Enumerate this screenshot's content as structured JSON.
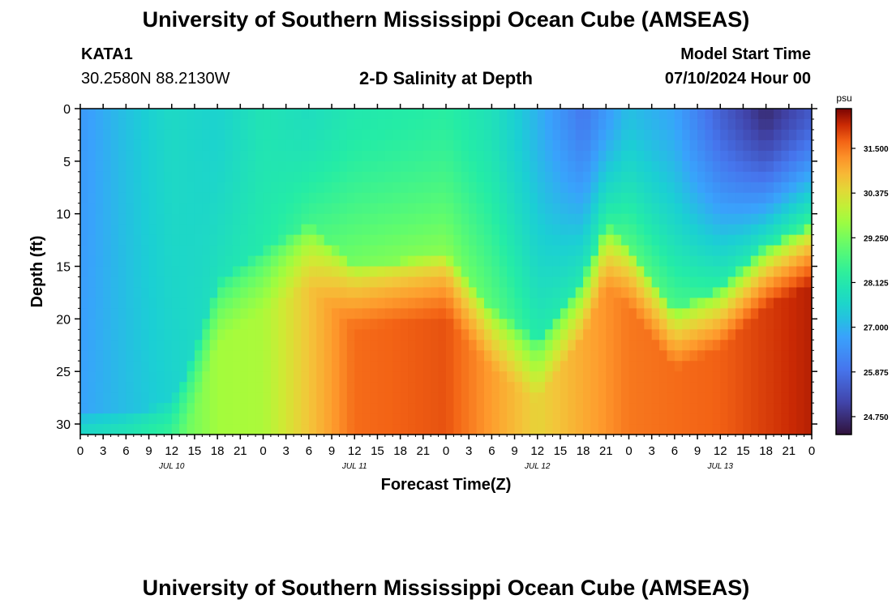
{
  "header": {
    "title": "University of Southern Mississippi Ocean Cube (AMSEAS)",
    "station_id": "KATA1",
    "station_coords": "30.2580N  88.2130W",
    "subtitle": "2-D Salinity at Depth",
    "model_start_label": "Model Start Time",
    "model_start_value": "07/10/2024 Hour 00"
  },
  "footer": {
    "title": "University of Southern Mississippi Ocean Cube (AMSEAS)"
  },
  "chart_data": {
    "type": "heatmap",
    "title": "2-D Salinity at Depth",
    "xlabel": "Forecast Time(Z)",
    "ylabel": "Depth (ft)",
    "x_range_hours": [
      0,
      96
    ],
    "y_range_ft": [
      0,
      31
    ],
    "y_ticks": [
      0,
      5,
      10,
      15,
      20,
      25,
      30
    ],
    "x_tick_labels": [
      "0",
      "3",
      "6",
      "9",
      "12",
      "15",
      "18",
      "21",
      "0",
      "3",
      "6",
      "9",
      "12",
      "15",
      "18",
      "21",
      "0",
      "3",
      "6",
      "9",
      "12",
      "15",
      "18",
      "21",
      "0",
      "3",
      "6",
      "9",
      "12",
      "15",
      "18",
      "21",
      "0"
    ],
    "day_labels": [
      {
        "label": "JUL 10",
        "hour": 12
      },
      {
        "label": "JUL 11",
        "hour": 36
      },
      {
        "label": "JUL 12",
        "hour": 60
      },
      {
        "label": "JUL 13",
        "hour": 84
      }
    ],
    "colorbar": {
      "unit": "psu",
      "min": 24.3,
      "max": 32.5,
      "ticks": [
        "31.500",
        "30.375",
        "29.250",
        "28.125",
        "27.000",
        "25.875",
        "24.750"
      ]
    },
    "halocline_depth_ft": [
      {
        "hour": 0,
        "depth": 30
      },
      {
        "hour": 6,
        "depth": 30
      },
      {
        "hour": 12,
        "depth": 29
      },
      {
        "hour": 15,
        "depth": 24
      },
      {
        "hour": 18,
        "depth": 17.5
      },
      {
        "hour": 24,
        "depth": 14.5
      },
      {
        "hour": 30,
        "depth": 12
      },
      {
        "hour": 36,
        "depth": 16
      },
      {
        "hour": 42,
        "depth": 15.5
      },
      {
        "hour": 48,
        "depth": 15
      },
      {
        "hour": 54,
        "depth": 20
      },
      {
        "hour": 60,
        "depth": 23
      },
      {
        "hour": 66,
        "depth": 17
      },
      {
        "hour": 69,
        "depth": 12
      },
      {
        "hour": 72,
        "depth": 14
      },
      {
        "hour": 78,
        "depth": 20
      },
      {
        "hour": 84,
        "depth": 18
      },
      {
        "hour": 90,
        "depth": 14
      },
      {
        "hour": 96,
        "depth": 12
      }
    ],
    "surface_salinity_psu": [
      {
        "hour": 0,
        "value": 26.6
      },
      {
        "hour": 6,
        "value": 27.2
      },
      {
        "hour": 12,
        "value": 27.7
      },
      {
        "hour": 18,
        "value": 27.5
      },
      {
        "hour": 24,
        "value": 28.0
      },
      {
        "hour": 30,
        "value": 27.8
      },
      {
        "hour": 36,
        "value": 28.1
      },
      {
        "hour": 42,
        "value": 28.2
      },
      {
        "hour": 48,
        "value": 28.3
      },
      {
        "hour": 54,
        "value": 27.9
      },
      {
        "hour": 60,
        "value": 27.0
      },
      {
        "hour": 66,
        "value": 26.0
      },
      {
        "hour": 72,
        "value": 27.2
      },
      {
        "hour": 78,
        "value": 26.8
      },
      {
        "hour": 84,
        "value": 25.6
      },
      {
        "hour": 90,
        "value": 24.7
      },
      {
        "hour": 96,
        "value": 25.5
      }
    ],
    "bottom_salinity_psu": [
      {
        "hour": 0,
        "value": 28.4
      },
      {
        "hour": 12,
        "value": 28.9
      },
      {
        "hour": 18,
        "value": 29.7
      },
      {
        "hour": 24,
        "value": 29.8
      },
      {
        "hour": 36,
        "value": 31.6
      },
      {
        "hour": 48,
        "value": 31.8
      },
      {
        "hour": 60,
        "value": 30.5
      },
      {
        "hour": 72,
        "value": 31.5
      },
      {
        "hour": 84,
        "value": 31.7
      },
      {
        "hour": 96,
        "value": 32.2
      }
    ]
  }
}
